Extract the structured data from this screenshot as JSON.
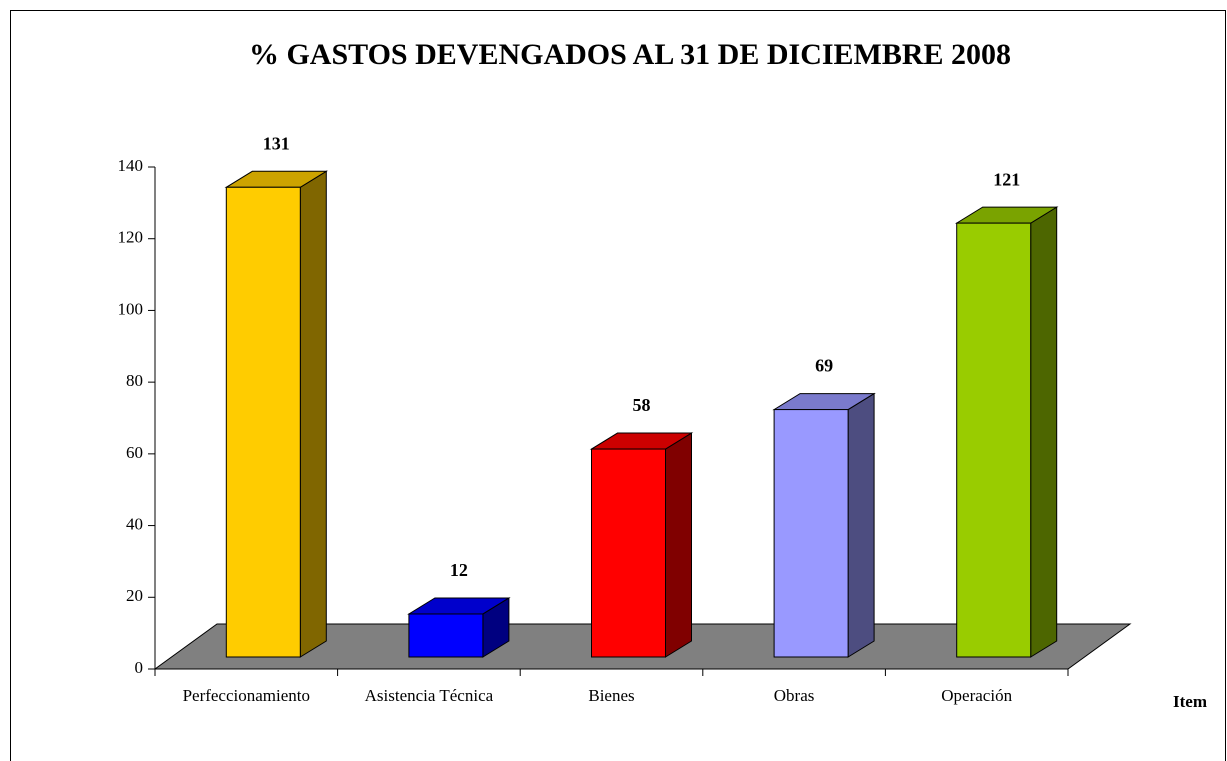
{
  "chart_data": {
    "type": "bar3d",
    "title": "% GASTOS DEVENGADOS AL 31 DE DICIEMBRE 2008",
    "x_label": "Item",
    "categories": [
      "Perfeccionamiento",
      "Asistencia Técnica",
      "Bienes",
      "Obras",
      "Operación"
    ],
    "values": [
      131,
      12,
      58,
      69,
      121
    ],
    "colors": [
      "#FFCC00",
      "#0000FF",
      "#FF0000",
      "#9999FF",
      "#99CC00"
    ],
    "ylim": [
      0,
      140
    ],
    "yticks": [
      0,
      20,
      40,
      60,
      80,
      100,
      120,
      140
    ]
  }
}
